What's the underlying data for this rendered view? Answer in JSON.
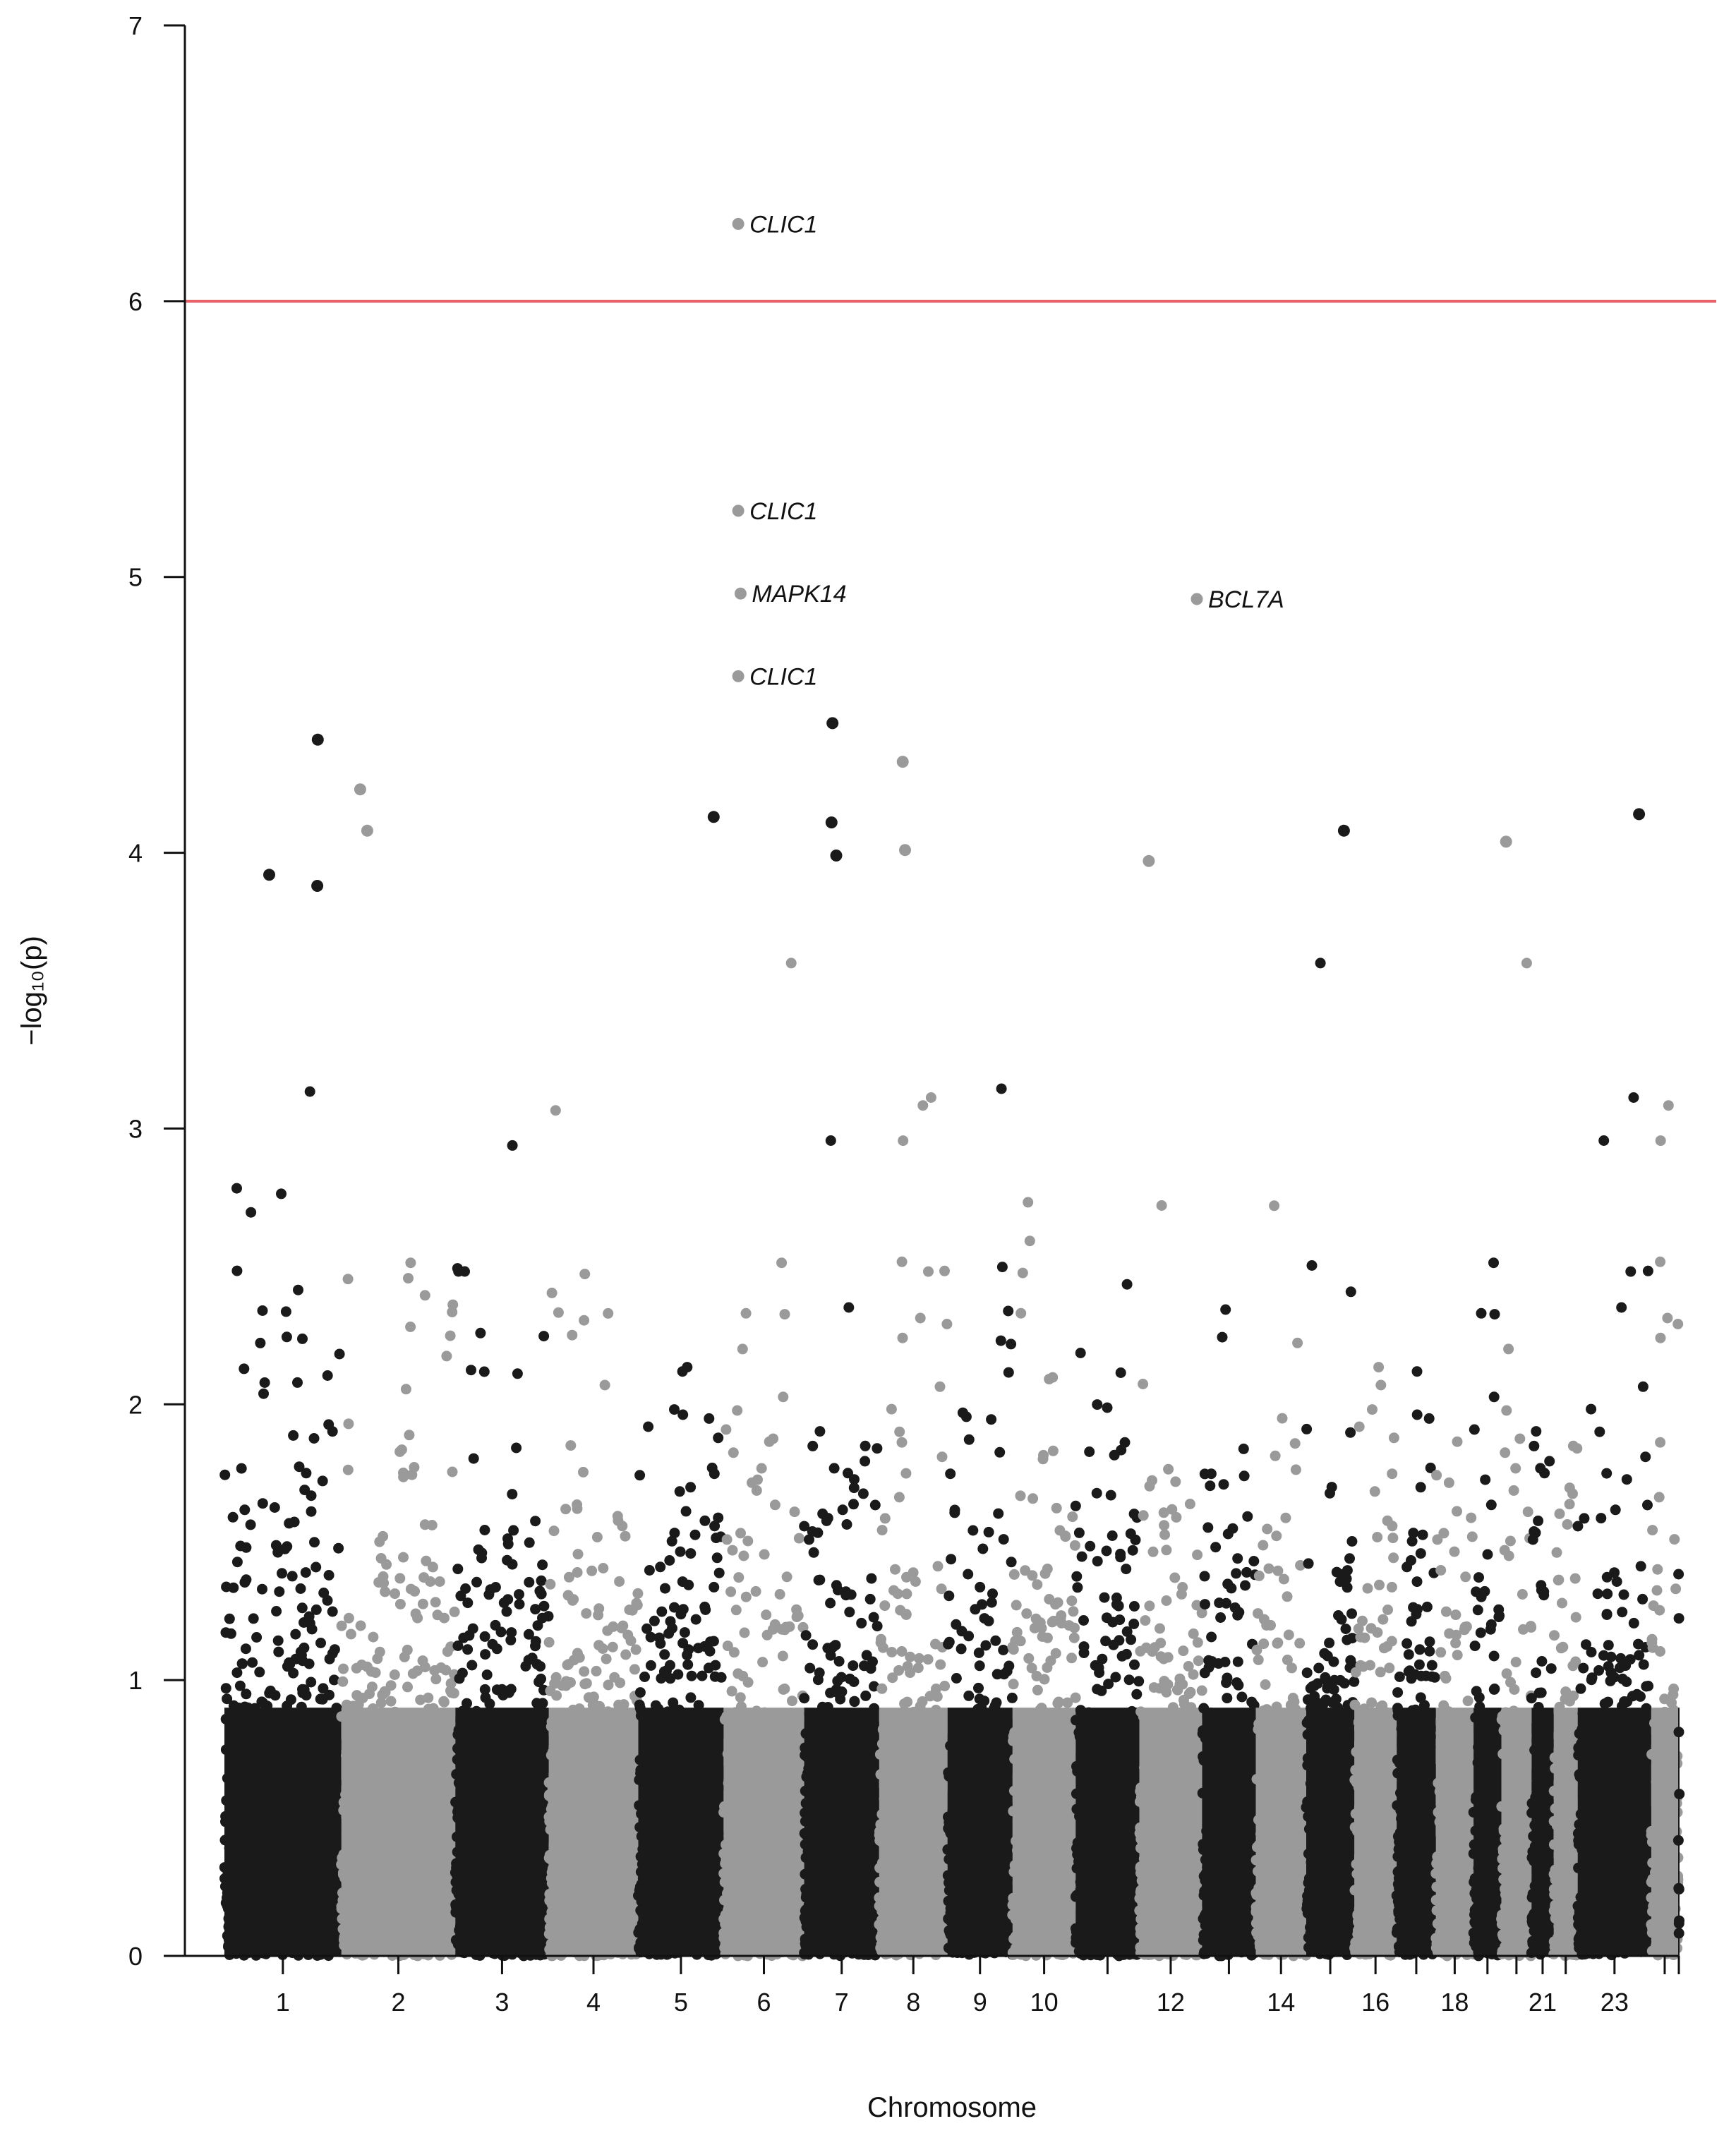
{
  "chart_data": {
    "type": "scatter",
    "subtype": "manhattan",
    "title": "",
    "xlabel": "Chromosome",
    "ylabel": "−log₁₀(p)",
    "ylim": [
      0,
      7
    ],
    "yticks": [
      0,
      1,
      2,
      3,
      4,
      5,
      6,
      7
    ],
    "threshold": {
      "value": 6,
      "color": "#e8626a"
    },
    "series_colors": {
      "odd": "#1a1a1a",
      "even": "#9a9a9a"
    },
    "chromosomes": [
      {
        "chr": 1,
        "size": 248
      },
      {
        "chr": 2,
        "size": 242
      },
      {
        "chr": 3,
        "size": 198
      },
      {
        "chr": 4,
        "size": 190
      },
      {
        "chr": 5,
        "size": 181
      },
      {
        "chr": 6,
        "size": 171
      },
      {
        "chr": 7,
        "size": 159
      },
      {
        "chr": 8,
        "size": 145
      },
      {
        "chr": 9,
        "size": 138
      },
      {
        "chr": 10,
        "size": 134
      },
      {
        "chr": 11,
        "size": 135
      },
      {
        "chr": 12,
        "size": 133
      },
      {
        "chr": 13,
        "size": 114
      },
      {
        "chr": 14,
        "size": 107
      },
      {
        "chr": 15,
        "size": 102
      },
      {
        "chr": 16,
        "size": 90
      },
      {
        "chr": 17,
        "size": 83
      },
      {
        "chr": 18,
        "size": 80
      },
      {
        "chr": 19,
        "size": 59
      },
      {
        "chr": 20,
        "size": 64
      },
      {
        "chr": 21,
        "size": 47
      },
      {
        "chr": 22,
        "size": 51
      },
      {
        "chr": 23,
        "size": 156
      },
      {
        "chr": 24,
        "size": 57
      },
      {
        "chr": 25,
        "size": 3
      }
    ],
    "x_tick_labels": [
      {
        "chr": 1,
        "label": "1"
      },
      {
        "chr": 2,
        "label": "2"
      },
      {
        "chr": 3,
        "label": "3"
      },
      {
        "chr": 4,
        "label": "4"
      },
      {
        "chr": 5,
        "label": "5"
      },
      {
        "chr": 6,
        "label": "6"
      },
      {
        "chr": 7,
        "label": "7"
      },
      {
        "chr": 8,
        "label": "8"
      },
      {
        "chr": 9,
        "label": "9"
      },
      {
        "chr": 10,
        "label": "10"
      },
      {
        "chr": 12,
        "label": "12"
      },
      {
        "chr": 14,
        "label": "14"
      },
      {
        "chr": 16,
        "label": "16"
      },
      {
        "chr": 18,
        "label": "18"
      },
      {
        "chr": 21,
        "label": "21"
      },
      {
        "chr": 23,
        "label": "23"
      }
    ],
    "top_points": [
      {
        "chr": 6,
        "pos": 31,
        "value": 6.28,
        "label": "CLIC1"
      },
      {
        "chr": 6,
        "pos": 31,
        "value": 5.24,
        "label": "CLIC1"
      },
      {
        "chr": 6,
        "pos": 36,
        "value": 4.94,
        "label": "MAPK14"
      },
      {
        "chr": 6,
        "pos": 31,
        "value": 4.64,
        "label": "CLIC1"
      },
      {
        "chr": 12,
        "pos": 122,
        "value": 4.92,
        "label": "BCL7A"
      },
      {
        "chr": 1,
        "pos": 198,
        "value": 4.41
      },
      {
        "chr": 7,
        "pos": 60,
        "value": 4.47
      },
      {
        "chr": 8,
        "pos": 50,
        "value": 4.33
      },
      {
        "chr": 2,
        "pos": 40,
        "value": 4.23
      },
      {
        "chr": 23,
        "pos": 130,
        "value": 4.14
      },
      {
        "chr": 5,
        "pos": 160,
        "value": 4.13
      },
      {
        "chr": 7,
        "pos": 58,
        "value": 4.11
      },
      {
        "chr": 15,
        "pos": 80,
        "value": 4.08
      },
      {
        "chr": 2,
        "pos": 55,
        "value": 4.08
      },
      {
        "chr": 20,
        "pos": 10,
        "value": 4.04
      },
      {
        "chr": 8,
        "pos": 55,
        "value": 4.01
      },
      {
        "chr": 7,
        "pos": 68,
        "value": 3.99
      },
      {
        "chr": 12,
        "pos": 20,
        "value": 3.97
      },
      {
        "chr": 1,
        "pos": 95,
        "value": 3.92
      },
      {
        "chr": 1,
        "pos": 197,
        "value": 3.88
      }
    ],
    "gene_labels": [
      "CLIC1",
      "CLIC1",
      "MAPK14",
      "CLIC1",
      "BCL7A"
    ]
  }
}
